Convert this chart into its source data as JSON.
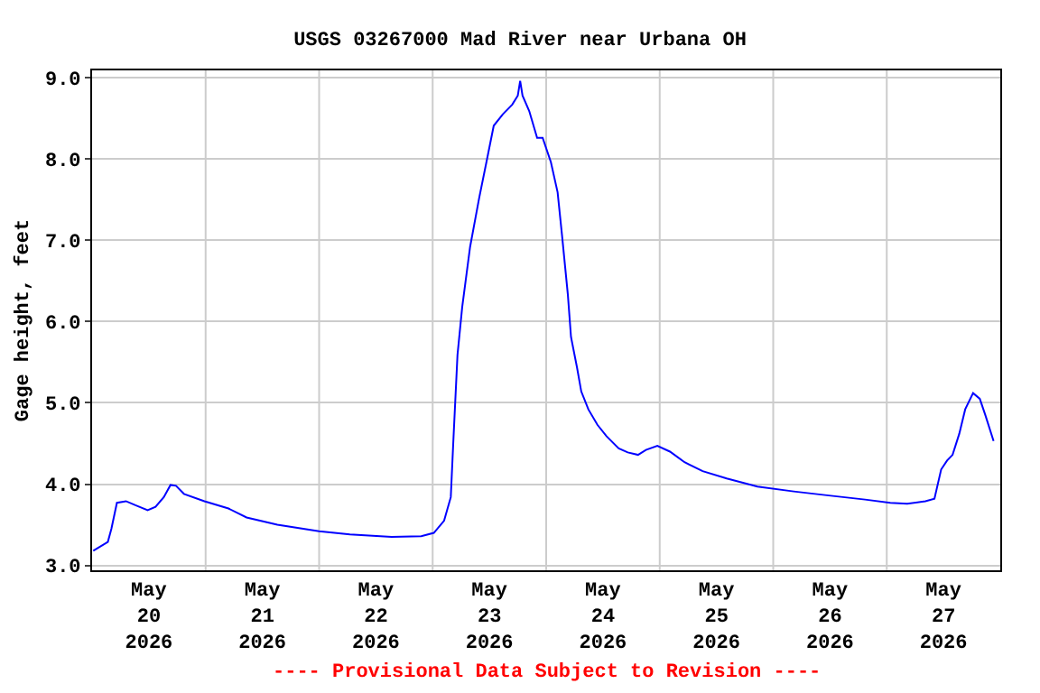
{
  "chart_data": {
    "type": "line",
    "title": "USGS 03267000 Mad River near Urbana OH",
    "ylabel": "Gage height, feet",
    "x": [
      "2026-05-20T00:15",
      "2026-05-20T03:20",
      "2026-05-20T04:05",
      "2026-05-20T05:15",
      "2026-05-20T07:10",
      "2026-05-20T09:10",
      "2026-05-20T11:45",
      "2026-05-20T13:25",
      "2026-05-20T15:10",
      "2026-05-20T16:35",
      "2026-05-20T17:45",
      "2026-05-20T19:25",
      "2026-05-20T23:45",
      "2026-05-21T04:50",
      "2026-05-21T08:40",
      "2026-05-21T15:10",
      "2026-05-22T00:00",
      "2026-05-22T06:30",
      "2026-05-22T15:20",
      "2026-05-22T21:35",
      "2026-05-23T00:15",
      "2026-05-23T02:25",
      "2026-05-23T03:50",
      "2026-05-23T04:20",
      "2026-05-23T05:15",
      "2026-05-23T06:15",
      "2026-05-23T07:55",
      "2026-05-23T09:50",
      "2026-05-23T11:30",
      "2026-05-23T12:55",
      "2026-05-23T14:50",
      "2026-05-23T16:50",
      "2026-05-23T18:00",
      "2026-05-23T18:30",
      "2026-05-23T19:00",
      "2026-05-23T20:25",
      "2026-05-23T22:05",
      "2026-05-23T23:15",
      "2026-05-24T01:00",
      "2026-05-24T02:25",
      "2026-05-24T03:20",
      "2026-05-24T04:35",
      "2026-05-24T05:15",
      "2026-05-24T06:30",
      "2026-05-24T07:25",
      "2026-05-24T08:55",
      "2026-05-24T10:50",
      "2026-05-24T12:45",
      "2026-05-24T15:20",
      "2026-05-24T17:15",
      "2026-05-24T19:25",
      "2026-05-24T21:05",
      "2026-05-24T23:30",
      "2026-05-25T02:10",
      "2026-05-25T05:15",
      "2026-05-25T09:05",
      "2026-05-25T14:10",
      "2026-05-25T20:40",
      "2026-05-26T04:20",
      "2026-05-26T11:45",
      "2026-05-26T19:25",
      "2026-05-27T00:45",
      "2026-05-27T04:20",
      "2026-05-27T08:10",
      "2026-05-27T10:05",
      "2026-05-27T11:30",
      "2026-05-27T12:45",
      "2026-05-27T13:55",
      "2026-05-27T15:20",
      "2026-05-27T16:35",
      "2026-05-27T18:15",
      "2026-05-27T19:40",
      "2026-05-27T20:50",
      "2026-05-27T22:35"
    ],
    "series": [
      {
        "color": "#0000ff",
        "values": [
          3.18,
          3.29,
          3.45,
          3.77,
          3.79,
          3.74,
          3.68,
          3.72,
          3.84,
          3.99,
          3.98,
          3.88,
          3.79,
          3.7,
          3.59,
          3.5,
          3.42,
          3.38,
          3.35,
          3.36,
          3.4,
          3.55,
          3.84,
          4.48,
          5.59,
          6.18,
          6.92,
          7.52,
          8.0,
          8.41,
          8.55,
          8.67,
          8.78,
          8.96,
          8.78,
          8.59,
          8.26,
          8.26,
          7.96,
          7.59,
          7.07,
          6.33,
          5.81,
          5.44,
          5.14,
          4.92,
          4.73,
          4.59,
          4.44,
          4.39,
          4.36,
          4.42,
          4.47,
          4.4,
          4.27,
          4.16,
          4.07,
          3.97,
          3.91,
          3.86,
          3.81,
          3.77,
          3.76,
          3.79,
          3.82,
          4.18,
          4.29,
          4.36,
          4.62,
          4.92,
          5.12,
          5.05,
          4.85,
          4.53
        ]
      }
    ],
    "xlim": [
      "2026-05-20",
      "2026-05-28"
    ],
    "xticks": [
      {
        "value": "2026-05-20T12:00",
        "label": "May\n20\n2026"
      },
      {
        "value": "2026-05-21T12:00",
        "label": "May\n21\n2026"
      },
      {
        "value": "2026-05-22T12:00",
        "label": "May\n22\n2026"
      },
      {
        "value": "2026-05-23T12:00",
        "label": "May\n23\n2026"
      },
      {
        "value": "2026-05-24T12:00",
        "label": "May\n24\n2026"
      },
      {
        "value": "2026-05-25T12:00",
        "label": "May\n25\n2026"
      },
      {
        "value": "2026-05-26T12:00",
        "label": "May\n26\n2026"
      },
      {
        "value": "2026-05-27T12:00",
        "label": "May\n27\n2026"
      },
      {
        "value": "2026-05-21",
        "label": null
      },
      {
        "value": "2026-05-22",
        "label": null
      },
      {
        "value": "2026-05-23",
        "label": null
      },
      {
        "value": "2026-05-24",
        "label": null
      },
      {
        "value": "2026-05-25",
        "label": null
      },
      {
        "value": "2026-05-26",
        "label": null
      },
      {
        "value": "2026-05-27",
        "label": null
      }
    ],
    "ylim": [
      2.94,
      9.09
    ],
    "yticks": [
      {
        "value": 3,
        "label": "3.0"
      },
      {
        "value": 4,
        "label": "4.0"
      },
      {
        "value": 5,
        "label": "5.0"
      },
      {
        "value": 6,
        "label": "6.0"
      },
      {
        "value": 7,
        "label": "7.0"
      },
      {
        "value": 8,
        "label": "8.0"
      },
      {
        "value": 9,
        "label": "9.0"
      }
    ],
    "grid": true,
    "line_style": "solid",
    "marker": "none",
    "annotations": [
      "---- Provisional Data Subject to Revision ----"
    ]
  }
}
